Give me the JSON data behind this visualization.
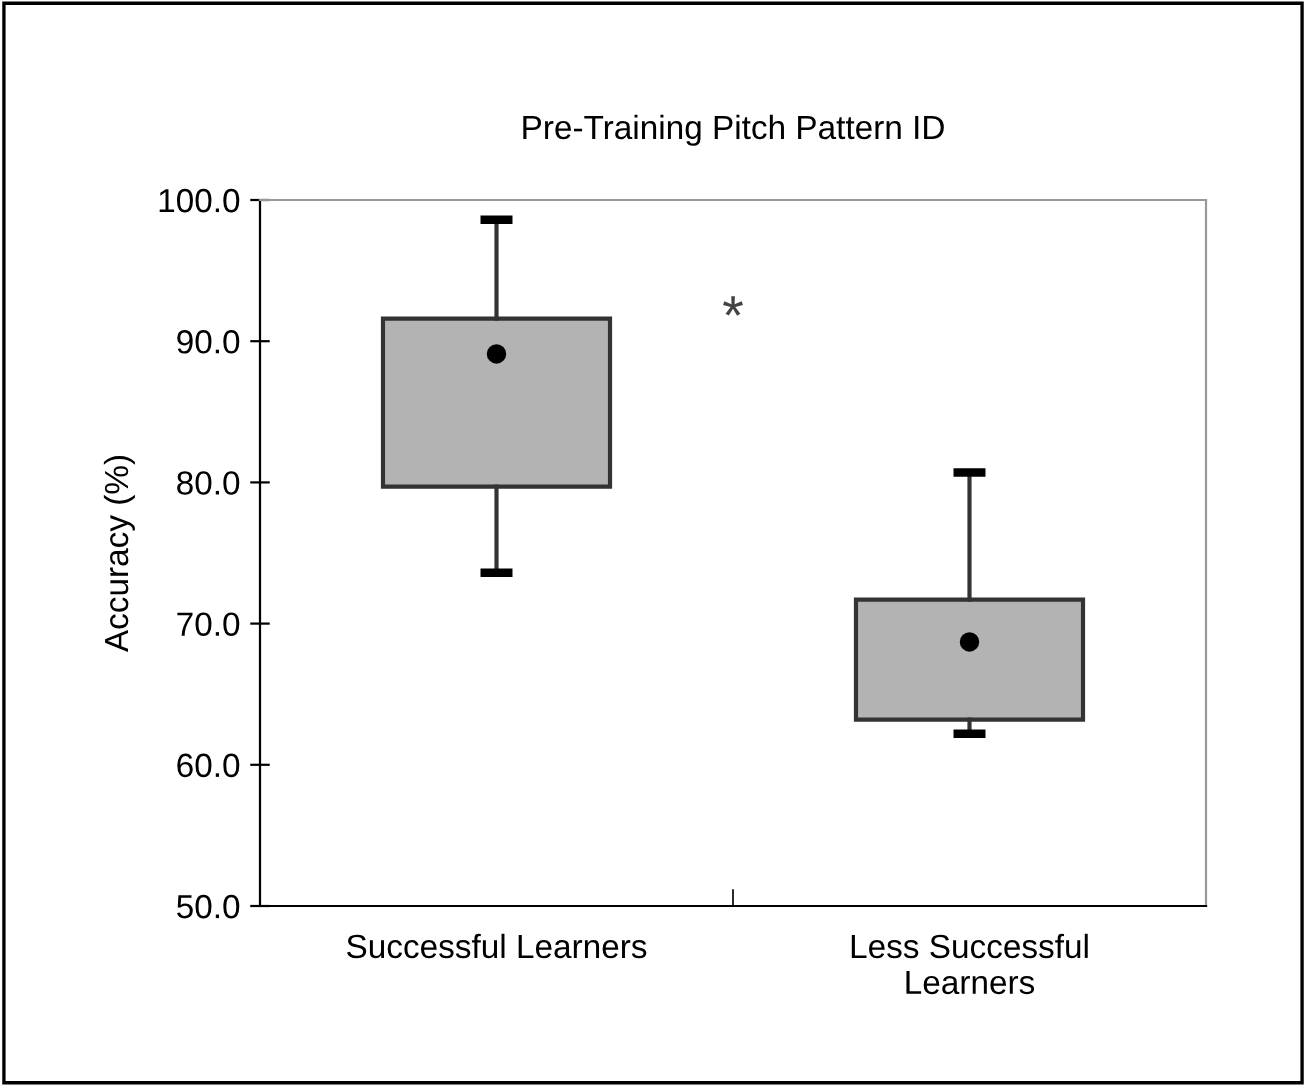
{
  "chart_data": {
    "type": "box",
    "title": "Pre-Training Pitch Pattern ID",
    "ylabel": "Accuracy (%)",
    "categories": [
      "Successful Learners",
      "Less Successful\nLearners"
    ],
    "boxes": [
      {
        "low": 73.6,
        "q1": 79.7,
        "median": null,
        "q3": 91.6,
        "high": 98.6,
        "mean": 89.1
      },
      {
        "low": 62.2,
        "q1": 63.2,
        "median": null,
        "q3": 71.7,
        "high": 80.7,
        "mean": 68.7
      }
    ],
    "color": "#b3b3b3",
    "ylim": [
      50,
      100
    ],
    "yticks": [
      {
        "value": 50,
        "label": "50.0"
      },
      {
        "value": 60,
        "label": "60.0"
      },
      {
        "value": 70,
        "label": "70.0"
      },
      {
        "value": 80,
        "label": "80.0"
      },
      {
        "value": 90,
        "label": "90.0"
      },
      {
        "value": 100,
        "label": "100.0"
      }
    ],
    "annotations": [
      "*"
    ],
    "grid": false,
    "legend": false
  }
}
